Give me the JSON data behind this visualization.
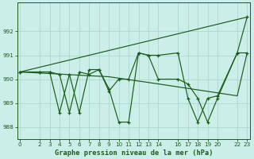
{
  "xlabel": "Graphe pression niveau de la mer (hPa)",
  "bg_color": "#cceee8",
  "line_color": "#1a5c1a",
  "grid_color": "#aad8d0",
  "ylim": [
    987.5,
    993.2
  ],
  "xlim": [
    -0.3,
    23.3
  ],
  "yticks": [
    988,
    989,
    990,
    991,
    992
  ],
  "xtick_positions": [
    0,
    2,
    3,
    4,
    5,
    6,
    7,
    8,
    9,
    10,
    11,
    12,
    13,
    14,
    16,
    17,
    18,
    19,
    20,
    22,
    23
  ],
  "xtick_labels": [
    "0",
    "2",
    "3",
    "4",
    "5",
    "6",
    "7",
    "8",
    "9",
    "10",
    "11",
    "12",
    "13",
    "14",
    "16",
    "17",
    "18",
    "19",
    "20",
    "22",
    "23"
  ],
  "series_detailed1_x": [
    0,
    2,
    3,
    4,
    5,
    6,
    7,
    8,
    9,
    10,
    11,
    12,
    13,
    14,
    16,
    17,
    18,
    19,
    20,
    22,
    23
  ],
  "series_detailed1_y": [
    990.3,
    990.3,
    990.3,
    988.6,
    990.2,
    988.6,
    990.4,
    990.4,
    989.6,
    988.2,
    988.2,
    991.1,
    991.0,
    991.0,
    991.1,
    989.2,
    988.2,
    989.2,
    989.3,
    991.1,
    992.6
  ],
  "series_detailed2_x": [
    0,
    2,
    3,
    4,
    5,
    6,
    7,
    8,
    9,
    10,
    11,
    12,
    13,
    14,
    16,
    17,
    18,
    19,
    20,
    22,
    23
  ],
  "series_detailed2_y": [
    990.3,
    990.3,
    990.3,
    990.2,
    988.6,
    990.3,
    990.2,
    990.4,
    989.5,
    990.0,
    990.0,
    991.1,
    991.0,
    990.0,
    990.0,
    989.8,
    989.2,
    988.2,
    989.2,
    991.1,
    991.1
  ],
  "series_trend1_x": [
    0,
    23
  ],
  "series_trend1_y": [
    990.3,
    992.6
  ],
  "series_trend2_x": [
    0,
    9,
    14,
    22,
    23
  ],
  "series_trend2_y": [
    990.3,
    990.1,
    989.8,
    989.3,
    991.1
  ]
}
